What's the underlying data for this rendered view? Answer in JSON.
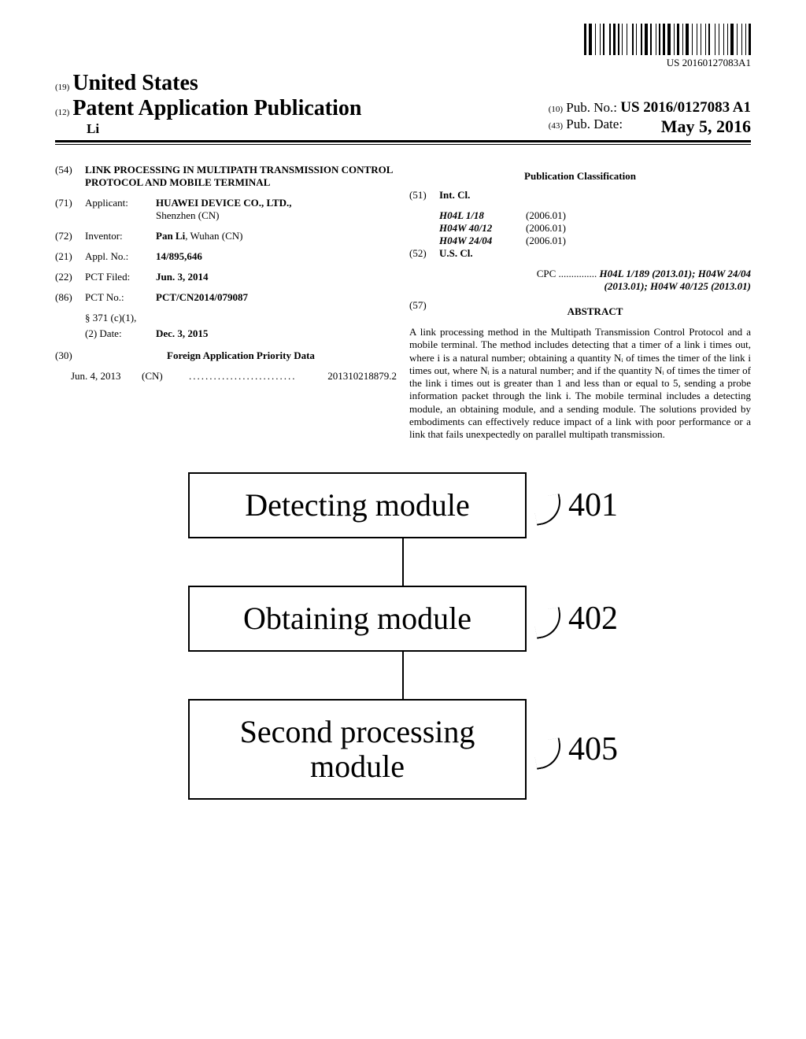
{
  "barcode_text": "US 20160127083A1",
  "header": {
    "sup19": "(19)",
    "country": "United States",
    "sup12": "(12)",
    "pub_type": "Patent Application Publication",
    "inventor_short": "Li",
    "sup10": "(10)",
    "pubno_label": "Pub. No.:",
    "pubno": "US 2016/0127083 A1",
    "sup43": "(43)",
    "pubdate_label": "Pub. Date:",
    "pubdate": "May 5, 2016"
  },
  "left": {
    "c54": "(54)",
    "title": "LINK PROCESSING IN MULTIPATH TRANSMISSION CONTROL PROTOCOL AND MOBILE TERMINAL",
    "c71": "(71)",
    "applicant_label": "Applicant:",
    "applicant": "HUAWEI DEVICE CO., LTD.,",
    "applicant_loc": "Shenzhen (CN)",
    "c72": "(72)",
    "inventor_label": "Inventor:",
    "inventor": "Pan Li",
    "inventor_loc": "Wuhan (CN)",
    "c21": "(21)",
    "applno_label": "Appl. No.:",
    "applno": "14/895,646",
    "c22": "(22)",
    "pctfiled_label": "PCT Filed:",
    "pctfiled": "Jun. 3, 2014",
    "c86": "(86)",
    "pctno_label": "PCT No.:",
    "pctno": "PCT/CN2014/079087",
    "s371_label": "§ 371 (c)(1),",
    "s371_2_label": "(2) Date:",
    "s371_date": "Dec. 3, 2015",
    "c30": "(30)",
    "priority_h": "Foreign Application Priority Data",
    "priority_date": "Jun. 4, 2013",
    "priority_cc": "(CN)",
    "priority_num": "201310218879.2"
  },
  "right": {
    "pubclass_h": "Publication Classification",
    "c51": "(51)",
    "intcl_label": "Int. Cl.",
    "intcl": [
      {
        "code": "H04L 1/18",
        "ver": "(2006.01)"
      },
      {
        "code": "H04W 40/12",
        "ver": "(2006.01)"
      },
      {
        "code": "H04W 24/04",
        "ver": "(2006.01)"
      }
    ],
    "c52": "(52)",
    "uscl_label": "U.S. Cl.",
    "cpc_label": "CPC",
    "cpc_line1": "H04L 1/189 (2013.01); H04W 24/04",
    "cpc_line2": "(2013.01); H04W 40/125 (2013.01)",
    "c57": "(57)",
    "abstract_h": "ABSTRACT",
    "abstract": "A link processing method in the Multipath Transmission Control Protocol and a mobile terminal. The method includes detecting that a timer of a link i times out, where i is a natural number; obtaining a quantity Nᵢ of times the timer of the link i times out, where Nᵢ is a natural number; and if the quantity Nᵢ of times the timer of the link i times out is greater than 1 and less than or equal to 5, sending a probe information packet through the link i. The mobile terminal includes a detecting module, an obtaining module, and a sending module. The solutions provided by embodiments can effectively reduce impact of a link with poor performance or a link that fails unexpectedly on parallel multipath transmission."
  },
  "diagram": {
    "modules": [
      {
        "label": "Detecting module",
        "num": "401"
      },
      {
        "label": "Obtaining module",
        "num": "402"
      },
      {
        "label": "Second processing module",
        "num": "405"
      }
    ]
  },
  "barcode_widths": [
    3,
    1,
    4,
    2,
    1,
    3,
    1,
    1,
    2,
    4,
    2,
    1,
    3,
    1,
    2,
    1,
    1,
    3,
    1,
    4,
    2,
    1,
    1,
    3,
    2,
    1,
    4,
    1,
    2,
    3,
    1,
    1,
    2,
    1,
    3,
    1,
    4,
    2,
    1,
    1,
    3,
    2,
    1,
    1,
    4,
    2,
    1,
    3,
    1,
    2,
    1,
    3,
    1,
    1,
    2,
    4,
    1,
    2,
    1,
    3,
    1,
    2,
    1,
    1,
    4,
    2,
    1,
    3,
    1,
    2,
    1,
    1,
    3
  ]
}
